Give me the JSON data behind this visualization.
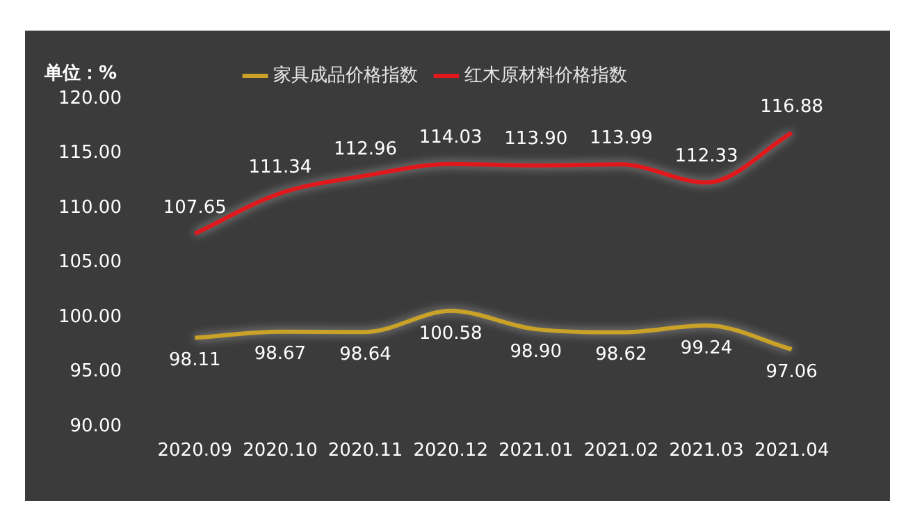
{
  "chart_data": {
    "type": "line",
    "ylabel": "单位：%",
    "categories": [
      "2020.09",
      "2020.10",
      "2020.11",
      "2020.12",
      "2021.01",
      "2021.02",
      "2021.03",
      "2021.04"
    ],
    "series": [
      {
        "name": "家具成品价格指数",
        "color": "#c9a227",
        "values": [
          98.11,
          98.67,
          98.64,
          100.58,
          98.9,
          98.62,
          99.24,
          97.06
        ],
        "value_labels": [
          "98.11",
          "98.67",
          "98.64",
          "100.58",
          "98.90",
          "98.62",
          "99.24",
          "97.06"
        ]
      },
      {
        "name": "红木原材料价格指数",
        "color": "#e0181b",
        "values": [
          107.65,
          111.34,
          112.96,
          114.03,
          113.9,
          113.99,
          112.33,
          116.88
        ],
        "value_labels": [
          "107.65",
          "111.34",
          "112.96",
          "114.03",
          "113.90",
          "113.99",
          "112.33",
          "116.88"
        ]
      }
    ],
    "ylim": [
      90,
      120
    ],
    "yticks": [
      {
        "value": 90,
        "label": "90.00"
      },
      {
        "value": 95,
        "label": "95.00"
      },
      {
        "value": 100,
        "label": "100.00"
      },
      {
        "value": 105,
        "label": "105.00"
      },
      {
        "value": 110,
        "label": "110.00"
      },
      {
        "value": 115,
        "label": "115.00"
      },
      {
        "value": 120,
        "label": "120.00"
      }
    ],
    "grid": false,
    "legend": "top",
    "marker": "none",
    "line_style": "solid"
  }
}
